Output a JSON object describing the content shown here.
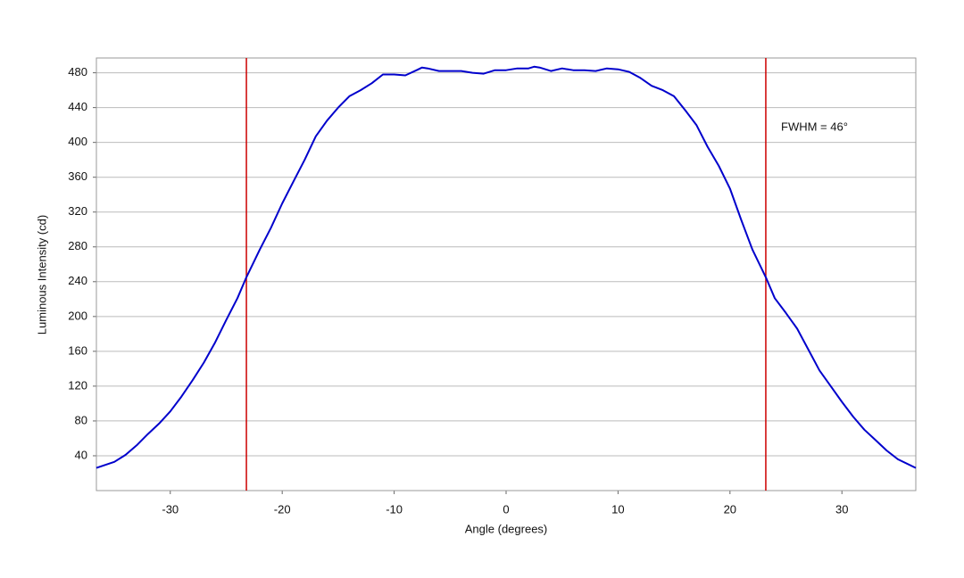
{
  "chart_data": {
    "type": "line",
    "x_label": "Angle (degrees)",
    "y_label": "Luminous Intensity (cd)",
    "annotation": "FWHM = 46°",
    "x": [
      -36.6,
      -35,
      -34,
      -33,
      -32,
      -31,
      -30,
      -29,
      -28,
      -27,
      -26,
      -25,
      -24,
      -23.2,
      -22,
      -21,
      -20,
      -19,
      -18,
      -17,
      -16,
      -15,
      -14,
      -13,
      -12,
      -11,
      -10,
      -9,
      -8,
      -7.5,
      -7,
      -6,
      -4,
      -3,
      -2,
      -1,
      0,
      1,
      2,
      2.5,
      3,
      4,
      5,
      6,
      7,
      8,
      9,
      10,
      11,
      12,
      13,
      14,
      15,
      16,
      17,
      18,
      19,
      20,
      21,
      22,
      23.2,
      24,
      25,
      26,
      27,
      28,
      29,
      30,
      31,
      32,
      33,
      34,
      35,
      36.6
    ],
    "series": [
      {
        "color": "#0000cc",
        "values": [
          26,
          33,
          41,
          52,
          65,
          77,
          91,
          108,
          127,
          147,
          170,
          196,
          221,
          245,
          277,
          302,
          330,
          355,
          380,
          407,
          425,
          440,
          453,
          460,
          468,
          478,
          478,
          477,
          483,
          486,
          485,
          482,
          482,
          480,
          479,
          483,
          483,
          485,
          485,
          487,
          486,
          482,
          485,
          483,
          483,
          482,
          485,
          484,
          481,
          474,
          465,
          460,
          453,
          437,
          420,
          395,
          373,
          347,
          311,
          277,
          245,
          221,
          204,
          186,
          162,
          138,
          120,
          102,
          85,
          70,
          58,
          46,
          36,
          26
        ]
      }
    ],
    "vlines": [
      -23.2,
      23.2
    ],
    "vline_color": "#cc0000",
    "xlim": [
      -36.6,
      36.6
    ],
    "ylim": [
      0,
      497
    ],
    "xticks": [
      -30,
      -20,
      -10,
      0,
      10,
      20,
      30
    ],
    "yticks": [
      40,
      80,
      120,
      160,
      200,
      240,
      280,
      320,
      360,
      400,
      440,
      480
    ],
    "grid": true
  }
}
